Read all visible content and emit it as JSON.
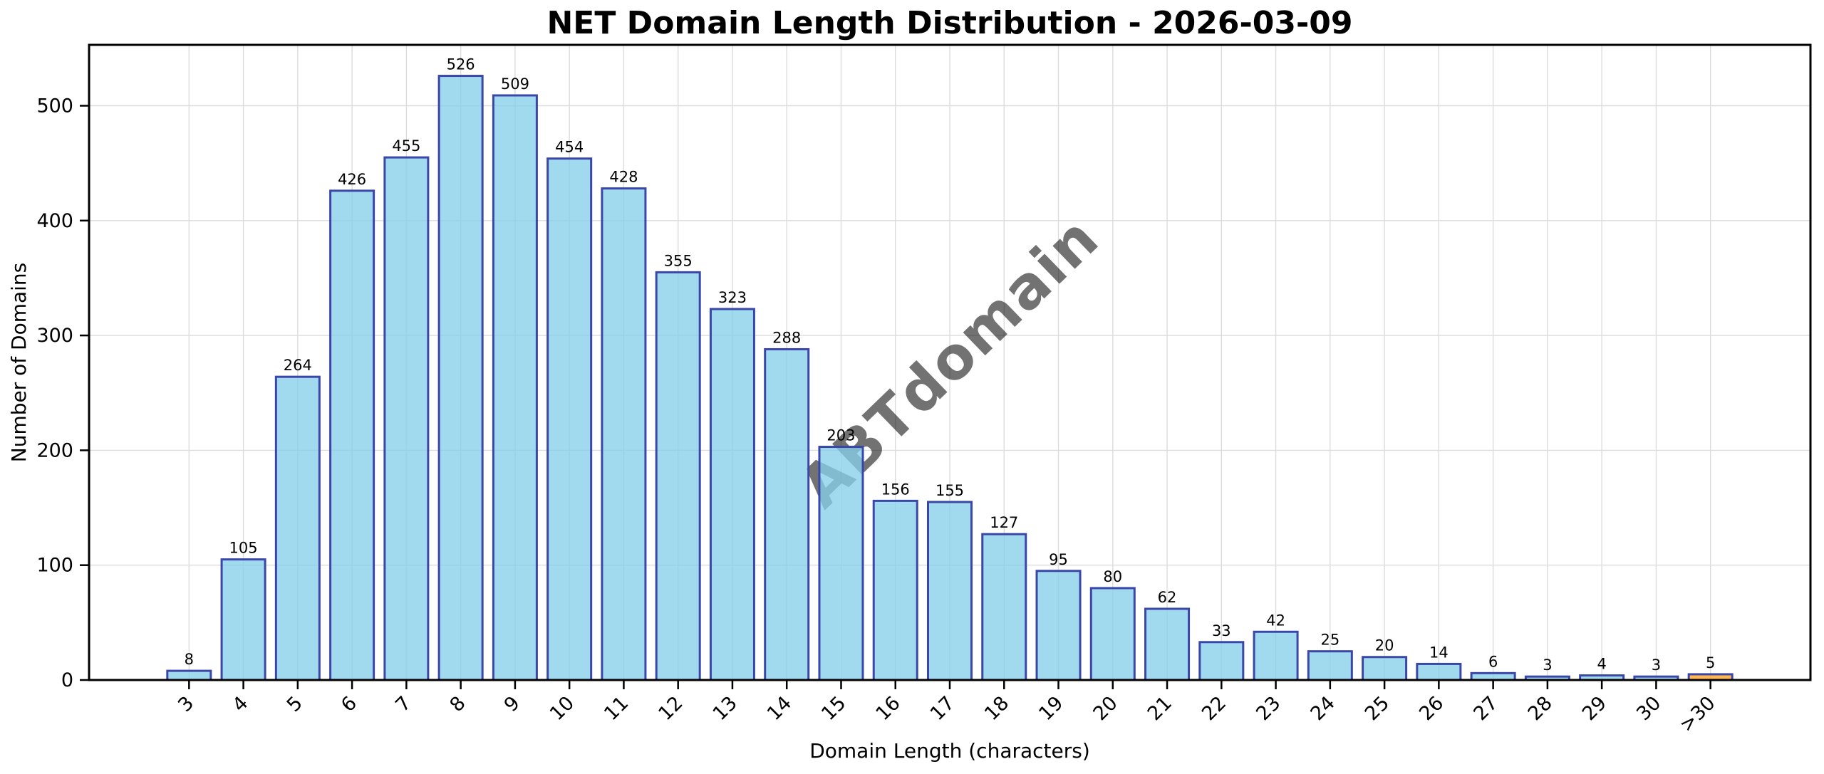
{
  "chart_data": {
    "type": "bar",
    "title": "NET Domain Length Distribution - 2026-03-09",
    "xlabel": "Domain Length (characters)",
    "ylabel": "Number of Domains",
    "categories": [
      "3",
      "4",
      "5",
      "6",
      "7",
      "8",
      "9",
      "10",
      "11",
      "12",
      "13",
      "14",
      "15",
      "16",
      "17",
      "18",
      "19",
      "20",
      "21",
      "22",
      "23",
      "24",
      "25",
      "26",
      "27",
      "28",
      "29",
      "30",
      ">30"
    ],
    "values": [
      8,
      105,
      264,
      426,
      455,
      526,
      509,
      454,
      428,
      355,
      323,
      288,
      203,
      156,
      155,
      127,
      95,
      80,
      62,
      33,
      42,
      25,
      20,
      14,
      6,
      3,
      4,
      3,
      5
    ],
    "yticks": [
      0,
      100,
      200,
      300,
      400,
      500
    ],
    "ylim": [
      0,
      553
    ],
    "grid": true,
    "legend": "none",
    "value_labels_shown": true,
    "x_tick_rotation_deg": 45,
    "highlight_category": ">30",
    "colors": {
      "bar_fill": "#87CEEB",
      "bar_edge": "#3A47A8",
      "highlight_fill": "#FFA320",
      "grid": "#DCDCDC",
      "axis": "#000000"
    }
  },
  "watermark": {
    "text": "ABTdomain",
    "color": "#BDBDBD"
  }
}
